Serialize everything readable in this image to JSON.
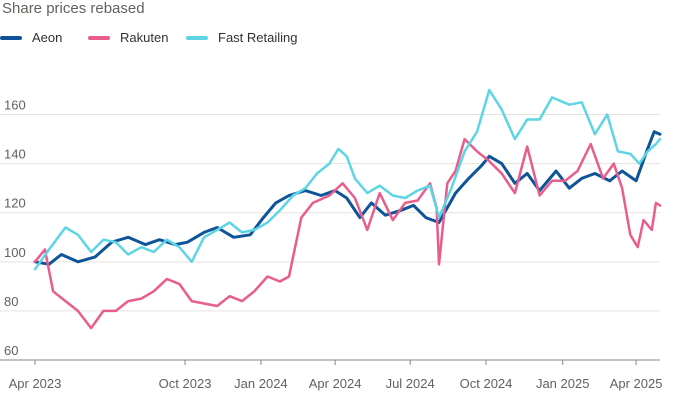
{
  "title": "Share prices rebased",
  "chart_data": {
    "type": "line",
    "title": "Share prices rebased",
    "xlabel": "",
    "ylabel": "",
    "x_range": [
      "2023-04-03",
      "2025-04-30"
    ],
    "ylim": [
      60,
      170
    ],
    "y_ticks": [
      60,
      80,
      100,
      120,
      140,
      160
    ],
    "x_ticks": [
      {
        "date": "2023-04-03",
        "label": "Apr 2023"
      },
      {
        "date": "2023-10-02",
        "label": "Oct 2023"
      },
      {
        "date": "2024-01-02",
        "label": "Jan 2024"
      },
      {
        "date": "2024-04-01",
        "label": "Apr 2024"
      },
      {
        "date": "2024-07-01",
        "label": "Jul 2024"
      },
      {
        "date": "2024-10-01",
        "label": "Oct 2024"
      },
      {
        "date": "2025-01-02",
        "label": "Jan 2025"
      },
      {
        "date": "2025-04-01",
        "label": "Apr 2025"
      }
    ],
    "grid": "horizontal",
    "legend_position": "top-left",
    "series": [
      {
        "name": "Aeon",
        "color": "#0f5499",
        "points": [
          [
            "2023-04-03",
            100
          ],
          [
            "2023-04-20",
            99
          ],
          [
            "2023-05-05",
            103
          ],
          [
            "2023-05-25",
            100
          ],
          [
            "2023-06-15",
            102
          ],
          [
            "2023-07-05",
            108
          ],
          [
            "2023-07-25",
            110
          ],
          [
            "2023-08-15",
            107
          ],
          [
            "2023-09-01",
            109
          ],
          [
            "2023-09-20",
            107
          ],
          [
            "2023-10-05",
            108
          ],
          [
            "2023-10-25",
            112
          ],
          [
            "2023-11-10",
            114
          ],
          [
            "2023-11-30",
            110
          ],
          [
            "2023-12-20",
            111
          ],
          [
            "2024-01-05",
            118
          ],
          [
            "2024-01-20",
            124
          ],
          [
            "2024-02-05",
            127
          ],
          [
            "2024-02-25",
            129
          ],
          [
            "2024-03-15",
            127
          ],
          [
            "2024-04-01",
            129
          ],
          [
            "2024-04-15",
            126
          ],
          [
            "2024-05-01",
            118
          ],
          [
            "2024-05-15",
            124
          ],
          [
            "2024-06-01",
            119
          ],
          [
            "2024-06-20",
            121
          ],
          [
            "2024-07-05",
            123
          ],
          [
            "2024-07-20",
            118
          ],
          [
            "2024-08-05",
            116
          ],
          [
            "2024-08-25",
            128
          ],
          [
            "2024-09-10",
            134
          ],
          [
            "2024-09-25",
            139
          ],
          [
            "2024-10-05",
            143
          ],
          [
            "2024-10-20",
            140
          ],
          [
            "2024-11-05",
            132
          ],
          [
            "2024-11-20",
            136
          ],
          [
            "2024-12-05",
            129
          ],
          [
            "2024-12-25",
            137
          ],
          [
            "2025-01-10",
            130
          ],
          [
            "2025-01-25",
            134
          ],
          [
            "2025-02-10",
            136
          ],
          [
            "2025-02-28",
            133
          ],
          [
            "2025-03-15",
            137
          ],
          [
            "2025-04-01",
            133
          ],
          [
            "2025-04-15",
            146
          ],
          [
            "2025-04-23",
            153
          ],
          [
            "2025-04-30",
            152
          ]
        ]
      },
      {
        "name": "Rakuten",
        "color": "#e95d8c",
        "points": [
          [
            "2023-04-03",
            100
          ],
          [
            "2023-04-15",
            105
          ],
          [
            "2023-04-25",
            88
          ],
          [
            "2023-05-10",
            84
          ],
          [
            "2023-05-25",
            80
          ],
          [
            "2023-06-10",
            73
          ],
          [
            "2023-06-25",
            80
          ],
          [
            "2023-07-10",
            80
          ],
          [
            "2023-07-25",
            84
          ],
          [
            "2023-08-10",
            85
          ],
          [
            "2023-08-25",
            88
          ],
          [
            "2023-09-10",
            93
          ],
          [
            "2023-09-25",
            91
          ],
          [
            "2023-10-10",
            84
          ],
          [
            "2023-10-25",
            83
          ],
          [
            "2023-11-10",
            82
          ],
          [
            "2023-11-25",
            86
          ],
          [
            "2023-12-10",
            84
          ],
          [
            "2023-12-25",
            88
          ],
          [
            "2024-01-10",
            94
          ],
          [
            "2024-01-25",
            92
          ],
          [
            "2024-02-05",
            94
          ],
          [
            "2024-02-20",
            118
          ],
          [
            "2024-03-05",
            124
          ],
          [
            "2024-03-25",
            127
          ],
          [
            "2024-04-10",
            132
          ],
          [
            "2024-04-25",
            126
          ],
          [
            "2024-05-10",
            113
          ],
          [
            "2024-05-25",
            128
          ],
          [
            "2024-06-10",
            117
          ],
          [
            "2024-06-25",
            124
          ],
          [
            "2024-07-10",
            125
          ],
          [
            "2024-07-25",
            132
          ],
          [
            "2024-08-02",
            122
          ],
          [
            "2024-08-05",
            99
          ],
          [
            "2024-08-15",
            132
          ],
          [
            "2024-08-25",
            137
          ],
          [
            "2024-09-05",
            150
          ],
          [
            "2024-09-20",
            145
          ],
          [
            "2024-10-05",
            141
          ],
          [
            "2024-10-20",
            136
          ],
          [
            "2024-11-05",
            128
          ],
          [
            "2024-11-20",
            147
          ],
          [
            "2024-12-05",
            127
          ],
          [
            "2024-12-20",
            133
          ],
          [
            "2025-01-05",
            133
          ],
          [
            "2025-01-20",
            137
          ],
          [
            "2025-02-05",
            148
          ],
          [
            "2025-02-20",
            134
          ],
          [
            "2025-03-05",
            140
          ],
          [
            "2025-03-15",
            130
          ],
          [
            "2025-03-25",
            111
          ],
          [
            "2025-04-03",
            106
          ],
          [
            "2025-04-10",
            117
          ],
          [
            "2025-04-20",
            113
          ],
          [
            "2025-04-25",
            124
          ],
          [
            "2025-04-30",
            123
          ]
        ]
      },
      {
        "name": "Fast Retailing",
        "color": "#5dd5e5",
        "points": [
          [
            "2023-04-03",
            97
          ],
          [
            "2023-04-20",
            105
          ],
          [
            "2023-05-10",
            114
          ],
          [
            "2023-05-25",
            111
          ],
          [
            "2023-06-10",
            104
          ],
          [
            "2023-06-25",
            109
          ],
          [
            "2023-07-10",
            108
          ],
          [
            "2023-07-25",
            103
          ],
          [
            "2023-08-10",
            106
          ],
          [
            "2023-08-25",
            104
          ],
          [
            "2023-09-10",
            109
          ],
          [
            "2023-09-25",
            106
          ],
          [
            "2023-10-10",
            100
          ],
          [
            "2023-10-25",
            110
          ],
          [
            "2023-11-10",
            113
          ],
          [
            "2023-11-25",
            116
          ],
          [
            "2023-12-10",
            112
          ],
          [
            "2023-12-25",
            113
          ],
          [
            "2024-01-10",
            116
          ],
          [
            "2024-01-25",
            121
          ],
          [
            "2024-02-10",
            127
          ],
          [
            "2024-02-25",
            130
          ],
          [
            "2024-03-10",
            136
          ],
          [
            "2024-03-25",
            140
          ],
          [
            "2024-04-05",
            146
          ],
          [
            "2024-04-15",
            143
          ],
          [
            "2024-04-25",
            134
          ],
          [
            "2024-05-10",
            128
          ],
          [
            "2024-05-25",
            131
          ],
          [
            "2024-06-10",
            127
          ],
          [
            "2024-06-25",
            126
          ],
          [
            "2024-07-10",
            129
          ],
          [
            "2024-07-25",
            131
          ],
          [
            "2024-08-05",
            118
          ],
          [
            "2024-08-20",
            130
          ],
          [
            "2024-09-05",
            145
          ],
          [
            "2024-09-20",
            153
          ],
          [
            "2024-10-05",
            170
          ],
          [
            "2024-10-20",
            162
          ],
          [
            "2024-11-05",
            150
          ],
          [
            "2024-11-20",
            158
          ],
          [
            "2024-12-05",
            158
          ],
          [
            "2024-12-20",
            167
          ],
          [
            "2025-01-10",
            164
          ],
          [
            "2025-01-25",
            165
          ],
          [
            "2025-02-10",
            152
          ],
          [
            "2025-02-25",
            160
          ],
          [
            "2025-03-10",
            145
          ],
          [
            "2025-03-25",
            144
          ],
          [
            "2025-04-05",
            140
          ],
          [
            "2025-04-15",
            145
          ],
          [
            "2025-04-25",
            148
          ],
          [
            "2025-04-30",
            150
          ]
        ]
      }
    ]
  }
}
